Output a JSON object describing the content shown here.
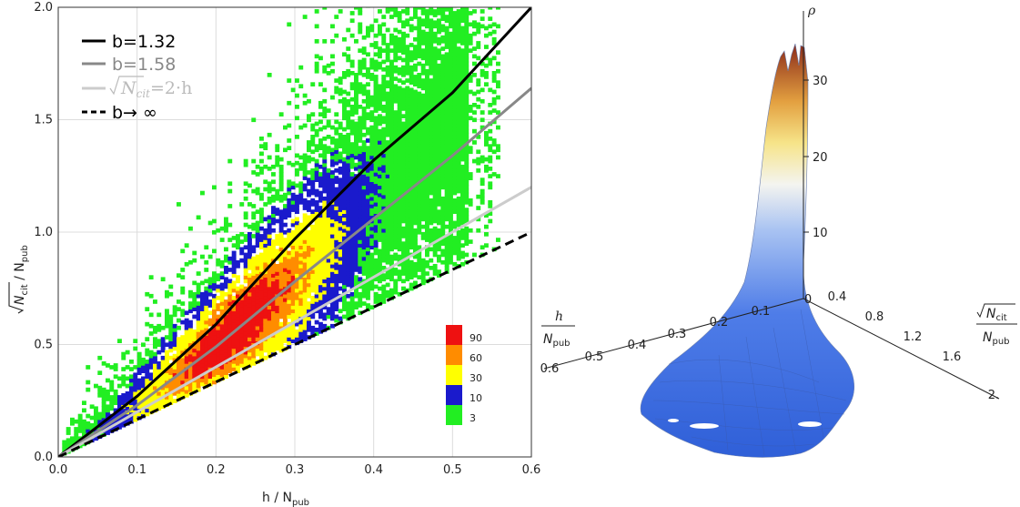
{
  "chart_data": [
    {
      "type": "heatmap",
      "xlabel": "h / N_pub",
      "ylabel": "√N_cit / N_pub",
      "xlim": [
        0,
        0.6
      ],
      "ylim": [
        0,
        2.0
      ],
      "x_ticks": [
        "0.0",
        "0.1",
        "0.2",
        "0.3",
        "0.4",
        "0.5",
        "0.6"
      ],
      "y_ticks": [
        "0.0",
        "0.5",
        "1.0",
        "1.5",
        "2.0"
      ],
      "grid": true,
      "legend_position": "top-left",
      "colorbar": {
        "levels": [
          "3",
          "10",
          "30",
          "60",
          "90"
        ],
        "colors": [
          "#22ee22",
          "#1a1acc",
          "#ffff00",
          "#ff8c00",
          "#ee1111"
        ]
      },
      "series": [
        {
          "name": "b=1.32",
          "color": "#000000",
          "style": "solid",
          "x": [
            0,
            0.1,
            0.2,
            0.3,
            0.4,
            0.5,
            0.6
          ],
          "y": [
            0,
            0.27,
            0.59,
            0.97,
            1.32,
            1.62,
            2.0
          ]
        },
        {
          "name": "b=1.58",
          "color": "#888888",
          "style": "solid",
          "x": [
            0,
            0.1,
            0.2,
            0.3,
            0.4,
            0.5,
            0.6
          ],
          "y": [
            0,
            0.23,
            0.49,
            0.78,
            1.06,
            1.34,
            1.64
          ]
        },
        {
          "name": "√N_cit=2·h",
          "color": "#cccccc",
          "style": "solid",
          "x": [
            0,
            0.1,
            0.2,
            0.3,
            0.4,
            0.5,
            0.6
          ],
          "y": [
            0,
            0.2,
            0.4,
            0.6,
            0.8,
            1.0,
            1.2
          ]
        },
        {
          "name": "b→ ∞",
          "color": "#000000",
          "style": "dashed",
          "x": [
            0,
            0.1,
            0.2,
            0.3,
            0.4,
            0.5,
            0.6
          ],
          "y": [
            0,
            0.167,
            0.333,
            0.5,
            0.667,
            0.833,
            1.0
          ]
        }
      ],
      "density_model": {
        "note_free": true,
        "green_region_x": [
          0.02,
          0.55
        ],
        "peak_x": 0.22
      }
    },
    {
      "type": "surface3d",
      "zlabel": "ρ",
      "z_ticks": [
        "10",
        "20",
        "30"
      ],
      "h_axis_ticks": [
        "0",
        "0.1",
        "0.2",
        "0.3",
        "0.4",
        "0.5",
        "0.6"
      ],
      "cit_axis_ticks": [
        "0.4",
        "0.8",
        "1.2",
        "1.6",
        "2."
      ],
      "h_axis_label": {
        "num": "h",
        "den": "N_pub"
      },
      "cit_axis_label": {
        "num": "√N_cit",
        "den": "N_pub"
      },
      "peak_value": 35
    }
  ],
  "labels": {
    "left_xlabel_h": "h / N",
    "left_xlabel_sub": "pub",
    "left_ylabel_n": "N",
    "left_ylabel_cit": "cit",
    "left_ylabel_rest": " / N",
    "left_ylabel_sub": "pub",
    "leg1": "b=1.32",
    "leg2": "b=1.58",
    "leg3_a": "N",
    "leg3_sub": "cit",
    "leg3_b": "=2·h",
    "leg4": "b→ ∞",
    "rho": "ρ",
    "h_num": "h",
    "h_den": "N",
    "h_den_sub": "pub",
    "c_num": "N",
    "c_num_sub": "cit",
    "c_den": "N",
    "c_den_sub": "pub"
  }
}
